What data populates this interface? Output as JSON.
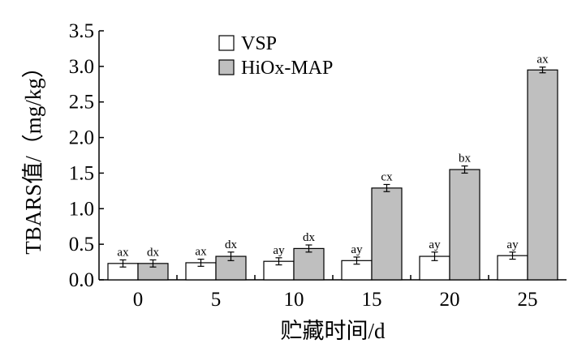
{
  "chart_data": {
    "type": "bar",
    "categories": [
      "0",
      "5",
      "10",
      "15",
      "20",
      "25"
    ],
    "series": [
      {
        "name": "VSP",
        "values": [
          0.23,
          0.24,
          0.26,
          0.27,
          0.33,
          0.34
        ],
        "errors": [
          0.05,
          0.05,
          0.05,
          0.05,
          0.06,
          0.05
        ],
        "labels": [
          "ax",
          "ax",
          "ay",
          "ay",
          "ay",
          "ay"
        ],
        "color": "#ffffff"
      },
      {
        "name": "HiOx-MAP",
        "values": [
          0.23,
          0.33,
          0.44,
          1.29,
          1.55,
          2.95
        ],
        "errors": [
          0.05,
          0.06,
          0.05,
          0.05,
          0.05,
          0.04
        ],
        "labels": [
          "dx",
          "dx",
          "dx",
          "cx",
          "bx",
          "ax"
        ],
        "color": "#bfbfbf"
      }
    ],
    "yticks": [
      "0.0",
      "0.5",
      "1.0",
      "1.5",
      "2.0",
      "2.5",
      "3.0",
      "3.5"
    ],
    "xlabel": "贮藏时间/d",
    "ylabel": "TBARS值/（mg/kg）",
    "ylim": [
      0,
      3.5
    ],
    "legend_position": "top-left",
    "grid": false
  }
}
